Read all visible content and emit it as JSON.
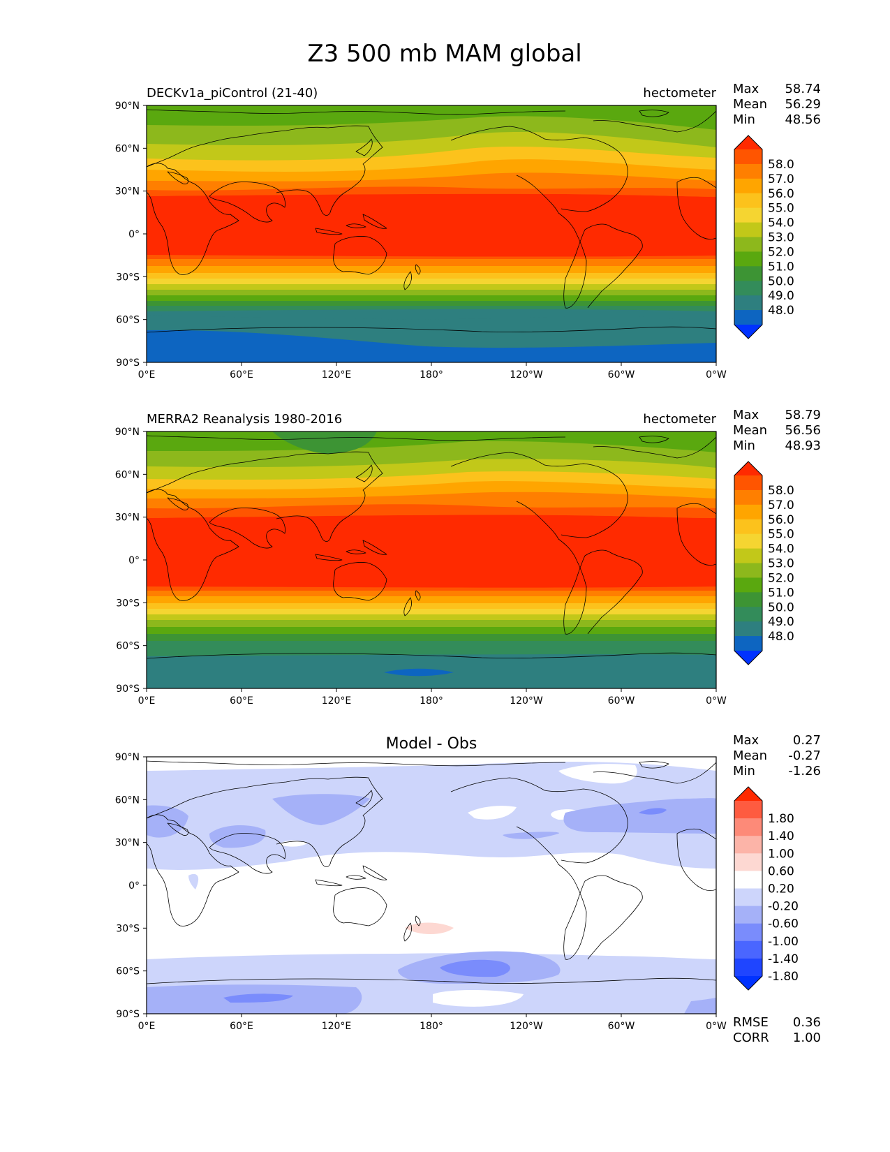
{
  "title": "Z3 500 mb MAM global",
  "lat_ticks": [
    "90°N",
    "60°N",
    "30°N",
    "0°",
    "30°S",
    "60°S",
    "90°S"
  ],
  "lon_ticks": [
    "0°E",
    "60°E",
    "120°E",
    "180°",
    "120°W",
    "60°W",
    "0°W"
  ],
  "panels": [
    {
      "left_title": "DECKv1a_piControl (21-40)",
      "center_title": "",
      "units": "hectometer",
      "stats": {
        "max_label": "Max",
        "max": "58.74",
        "mean_label": "Mean",
        "mean": "56.29",
        "min_label": "Min",
        "min": "48.56"
      },
      "colorbar_labels": [
        "58.0",
        "57.0",
        "56.0",
        "55.0",
        "54.0",
        "53.0",
        "52.0",
        "51.0",
        "50.0",
        "49.0",
        "48.0"
      ],
      "colorbar_colors": [
        "#ff2a00",
        "#ff5500",
        "#ff7f00",
        "#ffa500",
        "#fcc21c",
        "#f5d531",
        "#c2c819",
        "#8db81c",
        "#5aa80f",
        "#3d9434",
        "#338c5a",
        "#2e7f7f",
        "#0d65c1",
        "#0032ff"
      ],
      "metrics": []
    },
    {
      "left_title": "MERRA2 Reanalysis 1980-2016",
      "center_title": "",
      "units": "hectometer",
      "stats": {
        "max_label": "Max",
        "max": "58.79",
        "mean_label": "Mean",
        "mean": "56.56",
        "min_label": "Min",
        "min": "48.93"
      },
      "colorbar_labels": [
        "58.0",
        "57.0",
        "56.0",
        "55.0",
        "54.0",
        "53.0",
        "52.0",
        "51.0",
        "50.0",
        "49.0",
        "48.0"
      ],
      "colorbar_colors": [
        "#ff2a00",
        "#ff5500",
        "#ff7f00",
        "#ffa500",
        "#fcc21c",
        "#f5d531",
        "#c2c819",
        "#8db81c",
        "#5aa80f",
        "#3d9434",
        "#338c5a",
        "#2e7f7f",
        "#0d65c1",
        "#0032ff"
      ],
      "metrics": []
    },
    {
      "left_title": "",
      "center_title": "Model - Obs",
      "units": "",
      "stats": {
        "max_label": "Max",
        "max": "0.27",
        "mean_label": "Mean",
        "mean": "-0.27",
        "min_label": "Min",
        "min": "-1.26"
      },
      "colorbar_labels": [
        "1.80",
        "1.40",
        "1.00",
        "0.60",
        "0.20",
        "-0.20",
        "-0.60",
        "-1.00",
        "-1.40",
        "-1.80"
      ],
      "colorbar_colors": [
        "#ff2a00",
        "#fe5b40",
        "#fd8a78",
        "#fcb4a8",
        "#fdd8d2",
        "#ffffff",
        "#cdd5fb",
        "#a5b1f8",
        "#7a8cfc",
        "#4a66ff",
        "#1f45ff",
        "#0032ff"
      ],
      "metrics": [
        {
          "label": "RMSE",
          "value": "0.36"
        },
        {
          "label": "CORR",
          "value": "1.00"
        }
      ]
    }
  ]
}
